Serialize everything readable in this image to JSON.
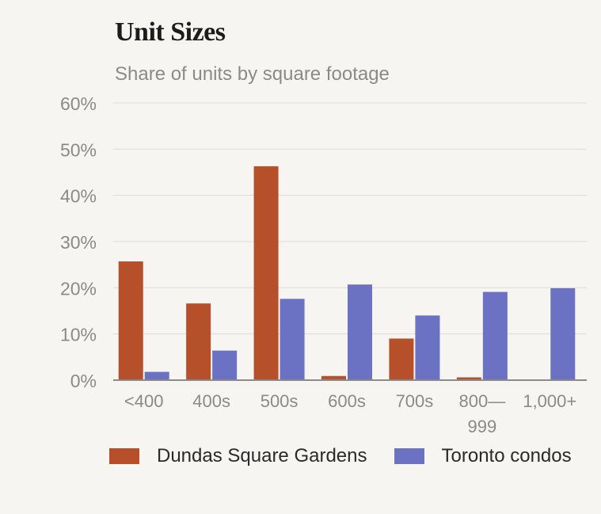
{
  "title": "Unit Sizes",
  "subtitle": "Share of units by square footage",
  "colors": {
    "series1": "#b5502b",
    "series2": "#6b72c4",
    "grid": "#dedbd6",
    "axis": "#8a8a8a",
    "tick_text": "#8d8a86"
  },
  "chart_data": {
    "type": "bar",
    "title": "Unit Sizes",
    "subtitle": "Share of units by square footage",
    "xlabel": "",
    "ylabel": "",
    "ylim": [
      0,
      60
    ],
    "yticks": [
      0,
      10,
      20,
      30,
      40,
      50,
      60
    ],
    "ytick_labels": [
      "0%",
      "10%",
      "20%",
      "30%",
      "40%",
      "50%",
      "60%"
    ],
    "categories": [
      "<400",
      "400s",
      "500s",
      "600s",
      "700s",
      "800—999",
      "1,000+"
    ],
    "category_label_lines": [
      [
        "<400"
      ],
      [
        "400s"
      ],
      [
        "500s"
      ],
      [
        "600s"
      ],
      [
        "700s"
      ],
      [
        "800—",
        "999"
      ],
      [
        "1,000+"
      ]
    ],
    "series": [
      {
        "name": "Dundas Square Gardens",
        "color": "#b5502b",
        "values": [
          25.7,
          16.6,
          46.3,
          0.9,
          9.0,
          0.6,
          0
        ]
      },
      {
        "name": "Toronto condos",
        "color": "#6b72c4",
        "values": [
          1.8,
          6.4,
          17.6,
          20.7,
          14.0,
          19.1,
          19.9
        ]
      }
    ],
    "grid": true,
    "legend_position": "bottom"
  }
}
